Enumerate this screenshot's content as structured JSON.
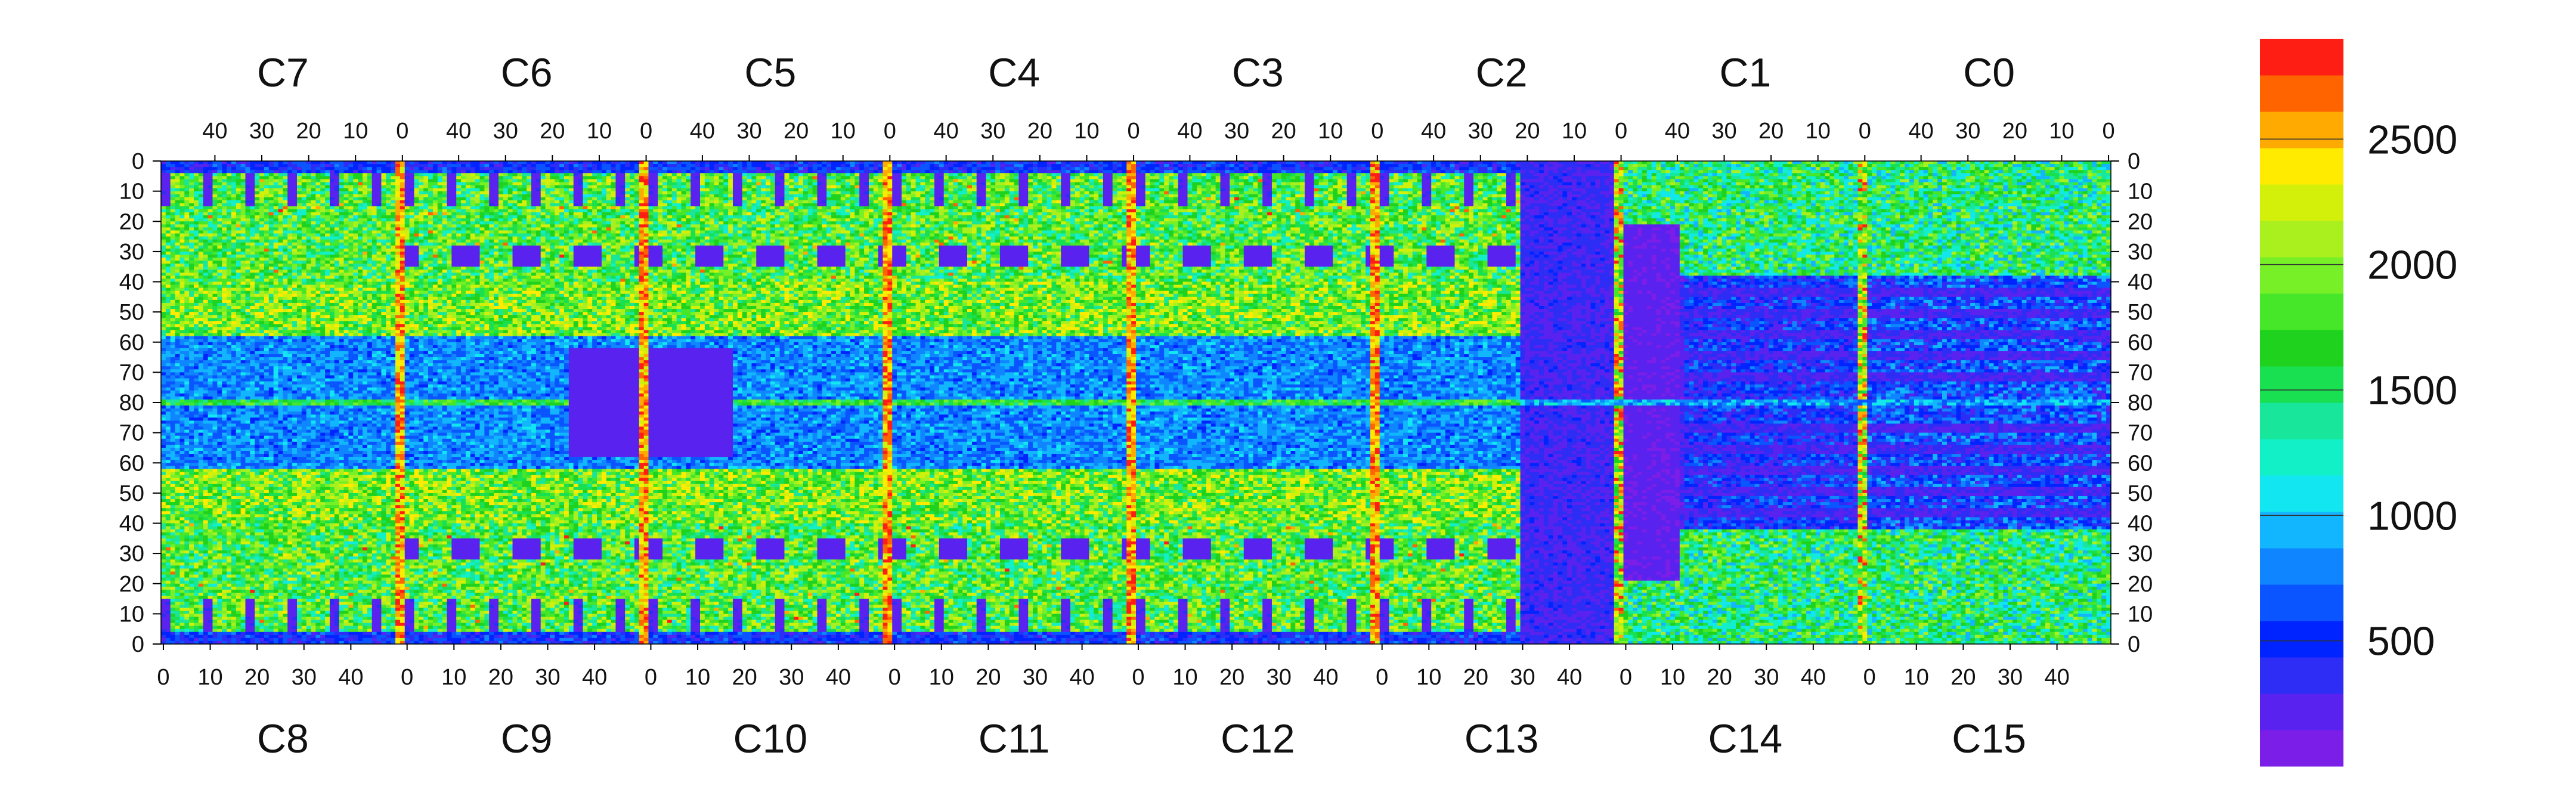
{
  "chart_data": {
    "type": "heatmap",
    "title": "",
    "top_chip_labels": [
      "C7",
      "C6",
      "C5",
      "C4",
      "C3",
      "C2",
      "C1",
      "C0"
    ],
    "bottom_chip_labels": [
      "C8",
      "C9",
      "C10",
      "C11",
      "C12",
      "C13",
      "C14",
      "C15"
    ],
    "top_col_ticks": [
      "40",
      "30",
      "20",
      "10",
      "0"
    ],
    "bottom_col_ticks": [
      "0",
      "10",
      "20",
      "30",
      "40"
    ],
    "row_ticks": [
      "0",
      "10",
      "20",
      "30",
      "40",
      "50",
      "60",
      "70",
      "80",
      "70",
      "60",
      "50",
      "40",
      "30",
      "20",
      "10",
      "0"
    ],
    "chip_columns": 52,
    "chip_rows": 80,
    "grid": false,
    "colorbar": {
      "min": 0,
      "max": 2900,
      "tick_values": [
        500,
        1000,
        1500,
        2000,
        2500
      ],
      "tick_labels": [
        "500",
        "1000",
        "1500",
        "2000",
        "2500"
      ],
      "bands": [
        {
          "from": 0,
          "to": 145,
          "color": "#7a1ee8"
        },
        {
          "from": 145,
          "to": 290,
          "color": "#5a22ee"
        },
        {
          "from": 290,
          "to": 435,
          "color": "#2d2df5"
        },
        {
          "from": 435,
          "to": 580,
          "color": "#0024ff"
        },
        {
          "from": 580,
          "to": 725,
          "color": "#0a55ff"
        },
        {
          "from": 725,
          "to": 870,
          "color": "#0f86ff"
        },
        {
          "from": 870,
          "to": 1015,
          "color": "#12b6ff"
        },
        {
          "from": 1015,
          "to": 1160,
          "color": "#12e6f0"
        },
        {
          "from": 1160,
          "to": 1305,
          "color": "#12f0c8"
        },
        {
          "from": 1305,
          "to": 1450,
          "color": "#18e69a"
        },
        {
          "from": 1450,
          "to": 1595,
          "color": "#18e050"
        },
        {
          "from": 1595,
          "to": 1740,
          "color": "#1ed21e"
        },
        {
          "from": 1740,
          "to": 1885,
          "color": "#46e628"
        },
        {
          "from": 1885,
          "to": 2030,
          "color": "#78f028"
        },
        {
          "from": 2030,
          "to": 2175,
          "color": "#aaf01e"
        },
        {
          "from": 2175,
          "to": 2320,
          "color": "#d2f00a"
        },
        {
          "from": 2320,
          "to": 2465,
          "color": "#ffeb00"
        },
        {
          "from": 2465,
          "to": 2610,
          "color": "#ffaa00"
        },
        {
          "from": 2610,
          "to": 2755,
          "color": "#ff6400"
        },
        {
          "from": 2755,
          "to": 2900,
          "color": "#ff1e14"
        }
      ]
    }
  }
}
